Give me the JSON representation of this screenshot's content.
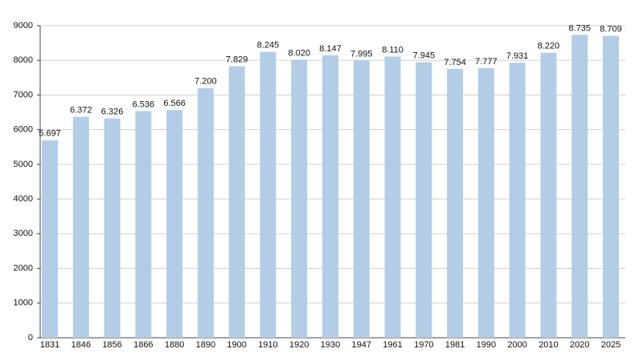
{
  "chart_data": {
    "type": "bar",
    "categories": [
      "1831",
      "1846",
      "1856",
      "1866",
      "1880",
      "1890",
      "1900",
      "1910",
      "1920",
      "1930",
      "1947",
      "1961",
      "1970",
      "1981",
      "1990",
      "2000",
      "2010",
      "2020",
      "2025"
    ],
    "values": [
      5697,
      6372,
      6326,
      6536,
      6566,
      7200,
      7829,
      8245,
      8020,
      8147,
      7995,
      8110,
      7945,
      7754,
      7777,
      7931,
      8220,
      8735,
      8709
    ],
    "value_labels": [
      "5.697",
      "6.372",
      "6.326",
      "6.536",
      "6.566",
      "7.200",
      "7.829",
      "8.245",
      "8.020",
      "8.147",
      "7.995",
      "8.110",
      "7.945",
      "7.754",
      "7.777",
      "7.931",
      "8.220",
      "8.735",
      "8.709"
    ],
    "color": "#b3cde6",
    "ylim": [
      0,
      9000
    ],
    "yticks": [
      0,
      1000,
      2000,
      3000,
      4000,
      5000,
      6000,
      7000,
      8000,
      9000
    ],
    "grid": true
  }
}
